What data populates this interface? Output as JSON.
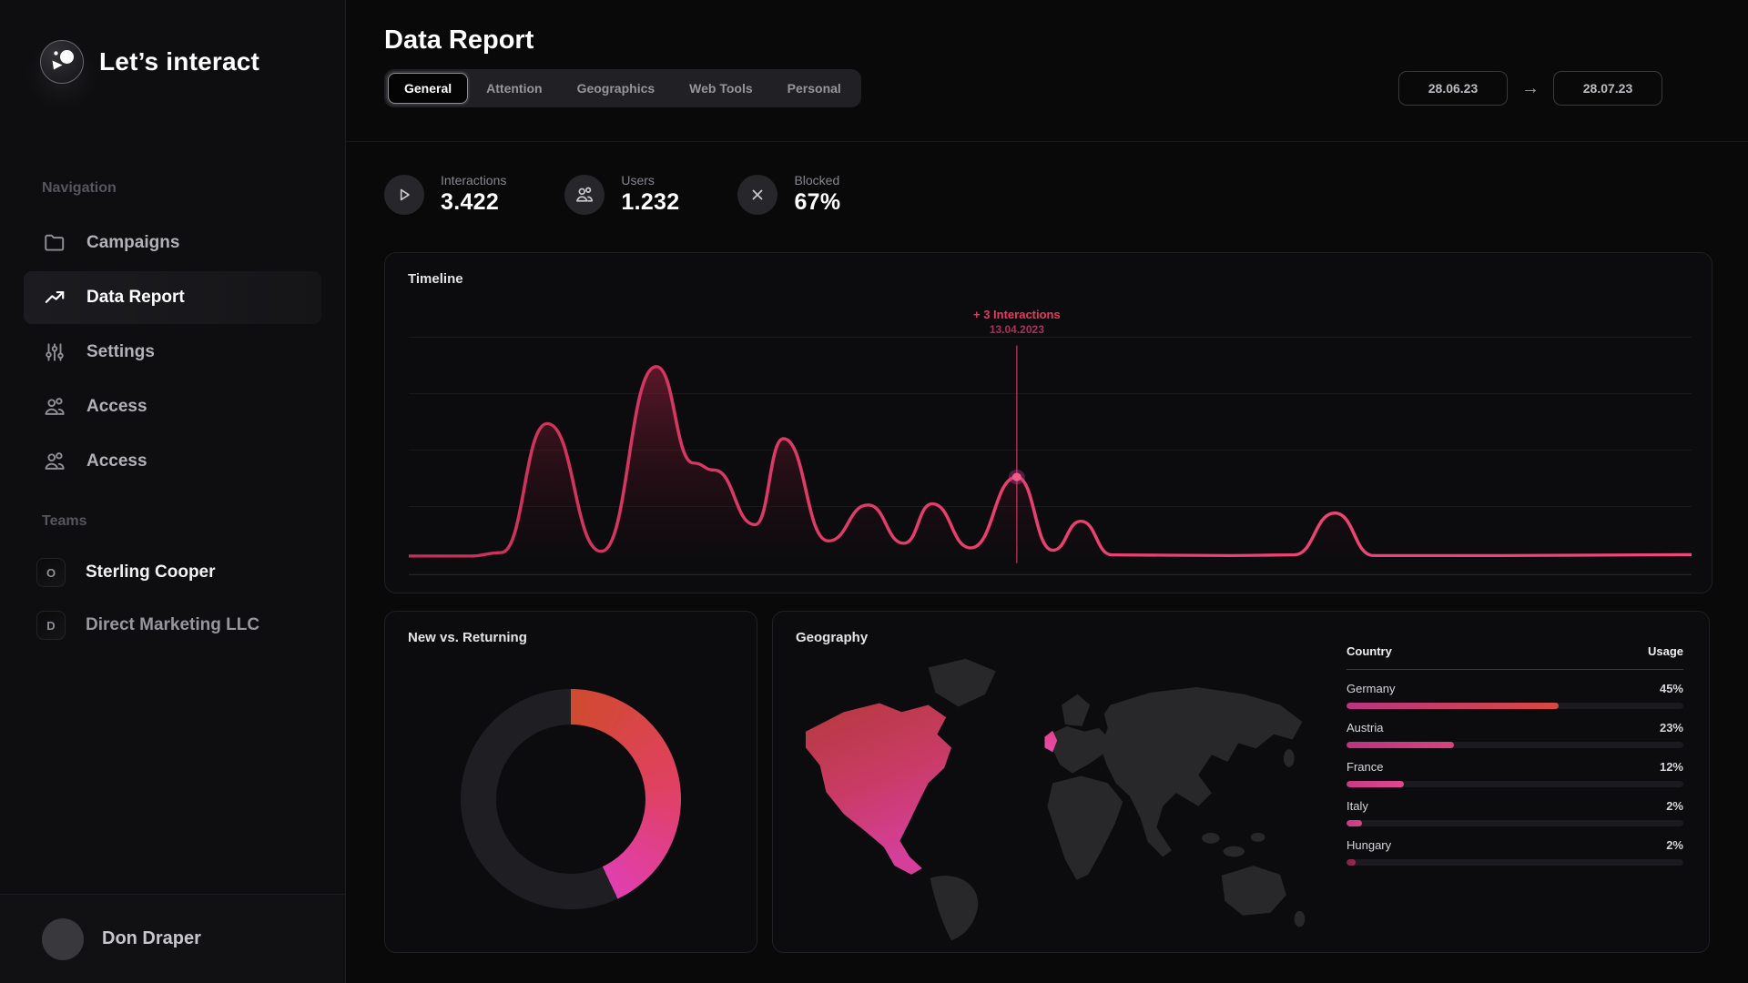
{
  "brand": {
    "name": "Let’s interact"
  },
  "sidebar": {
    "section_navigation": "Navigation",
    "items": [
      {
        "label": "Campaigns",
        "icon": "folder-icon",
        "active": false
      },
      {
        "label": "Data Report",
        "icon": "trending-up-icon",
        "active": true
      },
      {
        "label": "Settings",
        "icon": "sliders-icon",
        "active": false
      },
      {
        "label": "Access",
        "icon": "users-icon",
        "active": false
      },
      {
        "label": "Access",
        "icon": "users-icon",
        "active": false
      }
    ],
    "section_teams": "Teams",
    "teams": [
      {
        "initial": "O",
        "name": "Sterling Cooper"
      },
      {
        "initial": "D",
        "name": "Direct Marketing LLC"
      }
    ],
    "user": {
      "name": "Don Draper"
    }
  },
  "header": {
    "title": "Data Report",
    "tabs": [
      {
        "label": "General",
        "active": true
      },
      {
        "label": "Attention",
        "active": false
      },
      {
        "label": "Geographics",
        "active": false
      },
      {
        "label": "Web Tools",
        "active": false
      },
      {
        "label": "Personal",
        "active": false
      }
    ],
    "date_from": "28.06.23",
    "date_to": "28.07.23"
  },
  "stats": [
    {
      "label": "Interactions",
      "value": "3.422",
      "icon": "play-icon"
    },
    {
      "label": "Users",
      "value": "1.232",
      "icon": "users-icon"
    },
    {
      "label": "Blocked",
      "value": "67%",
      "icon": "close-icon"
    }
  ],
  "chart_data": [
    {
      "id": "timeline",
      "type": "area",
      "title": "Timeline",
      "x_range": [
        "28.06.23",
        "28.07.23"
      ],
      "gridlines": 5,
      "line_color": "#e8406e",
      "fill_top_color": "rgba(140,30,58,0.55)",
      "annotation": {
        "label": "+ 3 Interactions",
        "date": "13.04.2023",
        "x_fraction": 0.474,
        "peak_height": 0.37
      },
      "points": [
        [
          0.0,
          0.03
        ],
        [
          0.048,
          0.03
        ],
        [
          0.072,
          0.045
        ],
        [
          0.108,
          0.6
        ],
        [
          0.15,
          0.05
        ],
        [
          0.193,
          0.845
        ],
        [
          0.222,
          0.43
        ],
        [
          0.238,
          0.4
        ],
        [
          0.27,
          0.165
        ],
        [
          0.292,
          0.535
        ],
        [
          0.327,
          0.095
        ],
        [
          0.358,
          0.25
        ],
        [
          0.386,
          0.085
        ],
        [
          0.408,
          0.255
        ],
        [
          0.438,
          0.065
        ],
        [
          0.474,
          0.37
        ],
        [
          0.502,
          0.055
        ],
        [
          0.524,
          0.18
        ],
        [
          0.548,
          0.035
        ],
        [
          0.64,
          0.032
        ],
        [
          0.69,
          0.035
        ],
        [
          0.722,
          0.215
        ],
        [
          0.752,
          0.032
        ],
        [
          0.85,
          0.032
        ],
        [
          1.0,
          0.036
        ]
      ]
    },
    {
      "id": "new_vs_returning",
      "type": "donut",
      "title": "New vs. Returning",
      "segments": [
        {
          "name": "New",
          "fraction": 0.43,
          "color_start": "#d04a2e",
          "color_mid": "#e0415f",
          "color_end": "#e03fb0"
        },
        {
          "name": "Returning",
          "fraction": 0.57,
          "color": "#1f1f23"
        }
      ],
      "start_angle_deg": 0
    },
    {
      "id": "geography",
      "type": "table",
      "title": "Geography",
      "columns": [
        "Country",
        "Usage"
      ],
      "rows": [
        {
          "country": "Germany",
          "usage": "45%",
          "bar_fraction": 0.63,
          "bar_colors": [
            "#bb3382",
            "#d84740"
          ]
        },
        {
          "country": "Austria",
          "usage": "23%",
          "bar_fraction": 0.32,
          "bar_colors": [
            "#bb3382",
            "#d8447c"
          ]
        },
        {
          "country": "France",
          "usage": "12%",
          "bar_fraction": 0.17,
          "bar_colors": [
            "#c93a86",
            "#e0488f"
          ]
        },
        {
          "country": "Italy",
          "usage": "2%",
          "bar_fraction": 0.045,
          "bar_colors": [
            "#c93a86",
            "#d8447c"
          ]
        },
        {
          "country": "Hungary",
          "usage": "2%",
          "bar_fraction": 0.028,
          "bar_colors": [
            "#7e2340",
            "#9c2a50"
          ]
        }
      ],
      "map_highlighted_regions": [
        "North America",
        "United Kingdom"
      ]
    }
  ],
  "colors": {
    "accent_pink": "#e8406e",
    "accent_magenta": "#d83fa0",
    "accent_red": "#d4482f",
    "page_bg": "#09090a",
    "sidebar_bg": "#0e0e10",
    "card_bg": "#0c0c0e"
  }
}
